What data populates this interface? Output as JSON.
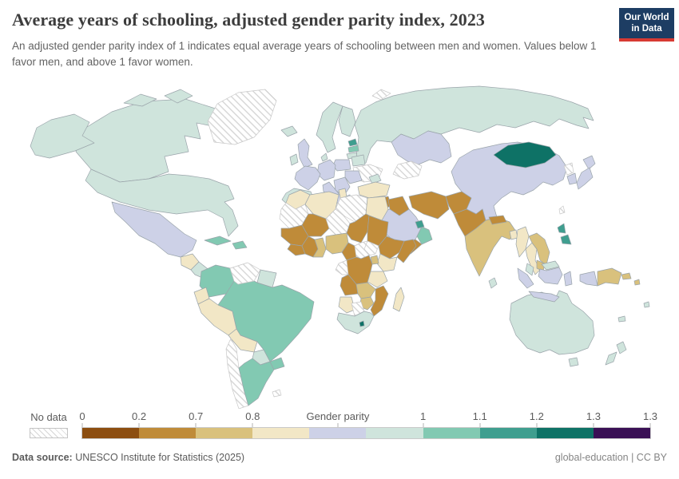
{
  "header": {
    "title": "Average years of schooling, adjusted gender parity index, 2023",
    "subtitle_line1": "An adjusted gender parity index of 1 indicates equal average years of schooling between men and women.",
    "subtitle_line2": "Values below 1 favor men, and above 1 favor women.",
    "logo": {
      "line1": "Our World",
      "line2": "in Data",
      "bg": "#1d3d63",
      "accent": "#d73a33"
    }
  },
  "legend": {
    "no_data_label": "No data",
    "ticks": [
      {
        "label": "0",
        "pos": 0
      },
      {
        "label": "0.2",
        "pos": 10
      },
      {
        "label": "0.7",
        "pos": 20
      },
      {
        "label": "0.8",
        "pos": 30
      },
      {
        "label": "Gender parity",
        "pos": 45
      },
      {
        "label": "1",
        "pos": 60
      },
      {
        "label": "1.1",
        "pos": 70
      },
      {
        "label": "1.2",
        "pos": 80
      },
      {
        "label": "1.3",
        "pos": 90
      },
      {
        "label": "1.3",
        "pos": 100
      }
    ],
    "bins": [
      {
        "id": "bin1",
        "color": "#8C4E10"
      },
      {
        "id": "bin2",
        "color": "#BF8B39"
      },
      {
        "id": "bin3",
        "color": "#D9C17D"
      },
      {
        "id": "bin4",
        "color": "#F2E7C6"
      },
      {
        "id": "bin5",
        "color": "#CDD1E7"
      },
      {
        "id": "bin6",
        "color": "#CFE4DC"
      },
      {
        "id": "bin7",
        "color": "#82C9B2"
      },
      {
        "id": "bin8",
        "color": "#3F9E8F"
      },
      {
        "id": "bin9",
        "color": "#0E7266"
      },
      {
        "id": "bin10",
        "color": "#3A1055"
      }
    ]
  },
  "chart_data": {
    "type": "choropleth_map",
    "title": "Average years of schooling, adjusted gender parity index, 2023",
    "unit": "adjusted gender parity index",
    "legend_tick_labels": [
      "0",
      "0.2",
      "0.7",
      "0.8",
      "Gender parity",
      "1",
      "1.1",
      "1.2",
      "1.3",
      "1.3"
    ],
    "bins": [
      {
        "order": 1,
        "color": "#8C4E10",
        "meaning": "strongly favors men (lowest band, from 0)"
      },
      {
        "order": 2,
        "color": "#BF8B39",
        "meaning": "0.2 to 0.7"
      },
      {
        "order": 3,
        "color": "#D9C17D",
        "meaning": "0.7 to 0.8"
      },
      {
        "order": 4,
        "color": "#F2E7C6",
        "meaning": "0.8 to below parity band"
      },
      {
        "order": 5,
        "color": "#CDD1E7",
        "meaning": "gender parity band"
      },
      {
        "order": 6,
        "color": "#CFE4DC",
        "meaning": "parity band to 1"
      },
      {
        "order": 7,
        "color": "#82C9B2",
        "meaning": "1 to 1.1"
      },
      {
        "order": 8,
        "color": "#3F9E8F",
        "meaning": "1.1 to 1.2"
      },
      {
        "order": 9,
        "color": "#0E7266",
        "meaning": "1.2 to 1.3"
      },
      {
        "order": 10,
        "color": "#3A1055",
        "meaning": "1.3 and above"
      },
      {
        "order": 11,
        "color": "hatched",
        "meaning": "No data"
      }
    ]
  },
  "map": {
    "border_color": "#9aa4aa",
    "no_data_border": "#c8c8c8",
    "regions": {
      "greenland": "no-data",
      "svalbard": "no-data",
      "alaska": "bin6",
      "canada": "bin6",
      "canada-islands-1": "bin6",
      "canada-islands-2": "bin6",
      "usa": "bin6",
      "mexico": "bin5",
      "guatemala": "bin4",
      "central-america": "bin6",
      "cuba": "bin7",
      "hispaniola": "bin7",
      "colombia": "bin7",
      "venezuela": "no-data",
      "guyanas": "bin6",
      "ecuador": "bin4",
      "peru": "bin4",
      "brazil": "bin7",
      "bolivia": "bin4",
      "paraguay": "bin6",
      "chile": "no-data",
      "argentina": "bin7",
      "uruguay": "bin7",
      "falklands": "no-data",
      "iceland": "bin6",
      "uk": "bin5",
      "ireland": "bin6",
      "norway-sweden": "bin6",
      "finland": "bin6",
      "denmark": "bin6",
      "estonia": "bin8",
      "latvia": "bin7",
      "lithuania": "bin6",
      "belarus": "bin6",
      "ukraine": "no-data",
      "poland": "bin5",
      "germany-central": "bin5",
      "france": "bin5",
      "spain-portugal": "bin6",
      "italy": "bin5",
      "balkans": "bin5",
      "greece": "bin5",
      "romania-bulgaria": "bin5",
      "caucasus": "bin6",
      "russia": "bin6",
      "kazakhstan": "bin5",
      "uzbek-turkmen": "no-data",
      "turkey": "bin4",
      "syria": "bin2",
      "israel": "bin9",
      "iraq": "bin2",
      "saudi": "bin5",
      "yemen": "bin2",
      "oman": "bin7",
      "gulf-states": "bin8",
      "iran": "bin2",
      "afghanistan": "bin2",
      "pakistan": "bin2",
      "india": "bin3",
      "nepal": "bin2",
      "bangladesh": "bin4",
      "srilanka": "bin6",
      "myanmar": "bin4",
      "thailand": "bin4",
      "vietnam-laos": "bin3",
      "cambodia": "bin3",
      "china": "bin5",
      "mongolia": "bin9",
      "north-korea": "no-data",
      "south-korea": "bin5",
      "japan-north": "bin5",
      "japan-south": "bin5",
      "taiwan": "no-data",
      "philippines-north": "bin8",
      "philippines-south": "bin8",
      "malaysia-peninsula": "bin6",
      "malaysia-borneo": "bin6",
      "sumatra": "bin5",
      "java": "bin5",
      "borneo": "bin5",
      "sulawesi": "bin5",
      "west-papua": "bin5",
      "png": "bin3",
      "new-britain": "bin3",
      "solomon": "bin3",
      "fiji": "bin6",
      "new-caledonia": "bin6",
      "australia": "bin6",
      "tasmania": "bin6",
      "nz-north": "bin6",
      "nz-south": "bin6",
      "morocco": "bin4",
      "wsahara-mauritania": "no-data",
      "algeria": "bin4",
      "tunisia": "bin4",
      "libya": "no-data",
      "egypt": "bin4",
      "mali": "bin2",
      "niger": "no-data",
      "chad": "bin2",
      "sudan": "bin2",
      "senegal-guinea": "bin2",
      "sierraleone-liberia": "bin2",
      "ivorycoast": "bin2",
      "ghana-togo": "bin3",
      "nigeria": "bin3",
      "cameroon": "bin2",
      "car": "no-data",
      "south-sudan": "no-data",
      "ethiopia": "bin2",
      "somalia": "bin2",
      "kenya": "bin4",
      "uganda": "bin3",
      "drc": "bin2",
      "tanzania": "bin4",
      "gabon-congo": "no-data",
      "angola": "bin2",
      "zambia": "bin3",
      "mozambique": "bin2",
      "zimbabwe": "bin3",
      "namibia": "bin4",
      "botswana": "no-data",
      "southafrica": "bin6",
      "lesotho": "bin9",
      "madagascar": "bin4"
    }
  },
  "footer": {
    "source_label": "Data source:",
    "source_text": " UNESCO Institute for Statistics (2025)",
    "note_right": "global-education | CC BY"
  }
}
